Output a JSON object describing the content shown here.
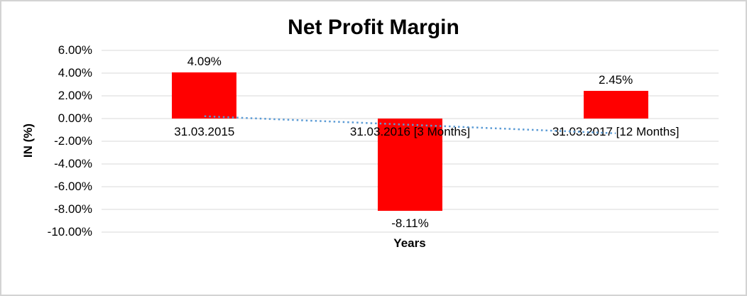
{
  "chart_data": {
    "type": "bar",
    "title": "Net Profit Margin",
    "xlabel": "Years",
    "ylabel": "IN (%)",
    "categories": [
      "31.03.2015",
      "31.03.2016 [3 Months]",
      "31.03.2017 [12 Months]"
    ],
    "series": [
      {
        "name": "Net Profit Margin",
        "values": [
          4.09,
          -8.11,
          2.45
        ]
      }
    ],
    "data_labels": [
      "4.09%",
      "-8.11%",
      "2.45%"
    ],
    "ylim": [
      -10,
      6
    ],
    "ytick_step": 2,
    "ytick_values": [
      6,
      4,
      2,
      0,
      -2,
      -4,
      -6,
      -8,
      -10
    ],
    "ytick_labels": [
      "6.00%",
      "4.00%",
      "2.00%",
      "0.00%",
      "-2.00%",
      "-4.00%",
      "-6.00%",
      "-8.00%",
      "-10.00%"
    ],
    "grid": true,
    "legend": "none",
    "bar_color": "#ff0000",
    "gridline_color": "#d9d9d9",
    "text_color": "#000000",
    "trendline": {
      "type": "linear",
      "style": "dotted",
      "color": "#5b9bd5",
      "start_value": 0.2,
      "end_value": -1.3
    }
  }
}
